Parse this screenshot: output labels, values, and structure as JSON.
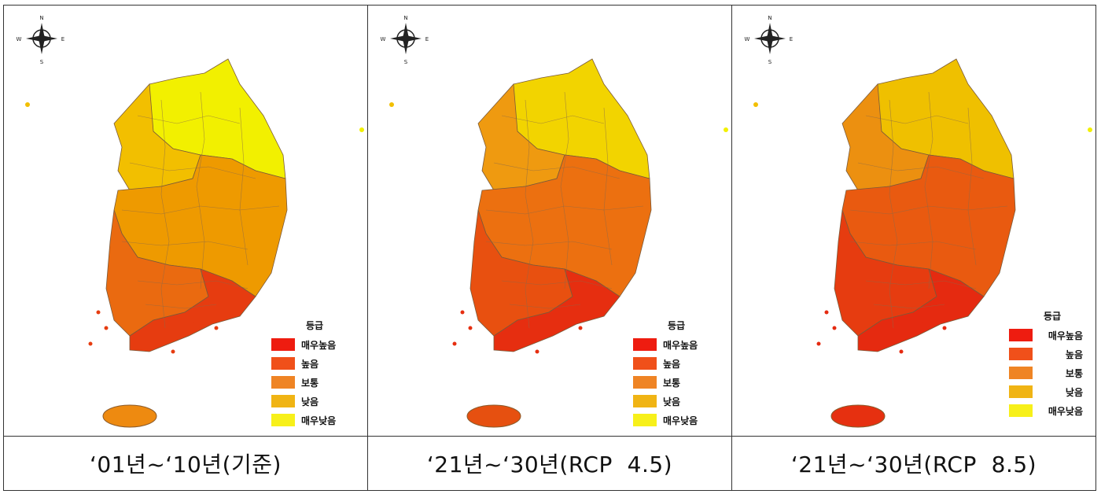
{
  "panels": [
    {
      "caption": "‘01년~‘10년(기준)",
      "scenario": "baseline",
      "fills": {
        "north": "#f2f000",
        "west_north": "#f2bf00",
        "center": "#ee9a00",
        "south_west": "#ea6a10",
        "south": "#e63c10",
        "jeju": "#ee8a10"
      }
    },
    {
      "caption": "‘21년~‘30년(RCP  4.5)",
      "scenario": "RCP 4.5",
      "fills": {
        "north": "#f2d400",
        "west_north": "#ef9a10",
        "center": "#ec7010",
        "south_west": "#e85010",
        "south": "#e62e10",
        "jeju": "#e65010"
      }
    },
    {
      "caption": "‘21년~‘30년(RCP  8.5)",
      "scenario": "RCP 8.5",
      "fills": {
        "north": "#efc000",
        "west_north": "#ec9010",
        "center": "#e95a10",
        "south_west": "#e63c10",
        "south": "#e52a10",
        "jeju": "#e63010"
      }
    }
  ],
  "legend": {
    "title": "등급",
    "items": [
      {
        "label": "매우높음",
        "color": "#ee1c10"
      },
      {
        "label": "높음",
        "color": "#f0501a"
      },
      {
        "label": "보통",
        "color": "#ef8424"
      },
      {
        "label": "낮음",
        "color": "#f0b414"
      },
      {
        "label": "매우낮음",
        "color": "#f7f01a"
      }
    ]
  },
  "compass": {
    "n": "N",
    "s": "S",
    "e": "E",
    "w": "W"
  }
}
